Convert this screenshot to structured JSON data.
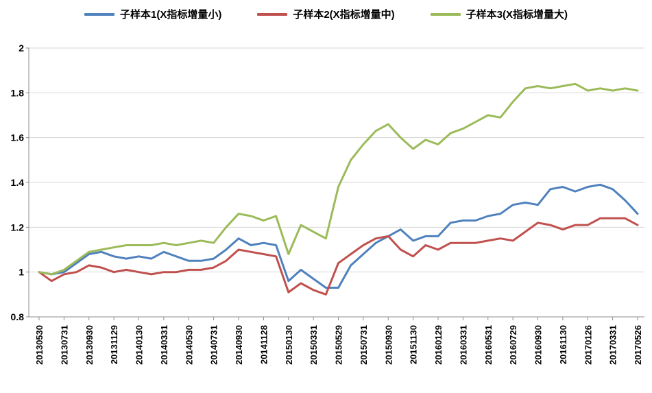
{
  "chart_data": {
    "type": "line",
    "title": "",
    "xlabel": "",
    "ylabel": "",
    "ylim": [
      0.8,
      2
    ],
    "yticks": [
      0.8,
      1,
      1.2,
      1.4,
      1.6,
      1.8,
      2
    ],
    "ytick_labels": [
      "0.8",
      "1",
      "1.2",
      "1.4",
      "1.6",
      "1.8",
      "2"
    ],
    "grid": true,
    "legend_position": "top",
    "points_per_label": 2,
    "x_tick_labels": [
      "20130530",
      "20130731",
      "20130930",
      "20131129",
      "20140130",
      "20140331",
      "20140530",
      "20140731",
      "20140930",
      "20141128",
      "20150130",
      "20150331",
      "20150529",
      "20150731",
      "20150930",
      "20151130",
      "20160129",
      "20160331",
      "20160531",
      "20160729",
      "20160930",
      "20161130",
      "20170126",
      "20170331",
      "20170526"
    ],
    "series": [
      {
        "name": "子样本1(X指标增量小)",
        "color": "#4F81BD",
        "values": [
          1.0,
          0.99,
          1.0,
          1.04,
          1.08,
          1.09,
          1.07,
          1.06,
          1.07,
          1.06,
          1.09,
          1.07,
          1.05,
          1.05,
          1.06,
          1.1,
          1.15,
          1.12,
          1.13,
          1.12,
          0.96,
          1.01,
          0.97,
          0.93,
          0.93,
          1.03,
          1.08,
          1.13,
          1.16,
          1.19,
          1.14,
          1.16,
          1.16,
          1.22,
          1.23,
          1.23,
          1.25,
          1.26,
          1.3,
          1.31,
          1.3,
          1.37,
          1.38,
          1.36,
          1.38,
          1.39,
          1.37,
          1.32,
          1.26
        ]
      },
      {
        "name": "子样本2(X指标增量中)",
        "color": "#C0504D",
        "values": [
          1.0,
          0.96,
          0.99,
          1.0,
          1.03,
          1.02,
          1.0,
          1.01,
          1.0,
          0.99,
          1.0,
          1.0,
          1.01,
          1.01,
          1.02,
          1.05,
          1.1,
          1.09,
          1.08,
          1.07,
          0.91,
          0.95,
          0.92,
          0.9,
          1.04,
          1.08,
          1.12,
          1.15,
          1.16,
          1.1,
          1.07,
          1.12,
          1.1,
          1.13,
          1.13,
          1.13,
          1.14,
          1.15,
          1.14,
          1.18,
          1.22,
          1.21,
          1.19,
          1.21,
          1.21,
          1.24,
          1.24,
          1.24,
          1.21
        ]
      },
      {
        "name": "子样本3(X指标增量大)",
        "color": "#9BBB59",
        "values": [
          1.0,
          0.99,
          1.01,
          1.05,
          1.09,
          1.1,
          1.11,
          1.12,
          1.12,
          1.12,
          1.13,
          1.12,
          1.13,
          1.14,
          1.13,
          1.2,
          1.26,
          1.25,
          1.23,
          1.25,
          1.08,
          1.21,
          1.18,
          1.15,
          1.38,
          1.5,
          1.57,
          1.63,
          1.66,
          1.6,
          1.55,
          1.59,
          1.57,
          1.62,
          1.64,
          1.67,
          1.7,
          1.69,
          1.76,
          1.82,
          1.83,
          1.82,
          1.83,
          1.84,
          1.81,
          1.82,
          1.81,
          1.82,
          1.81
        ]
      }
    ],
    "colors": {
      "grid": "#D6D6D6",
      "axis": "#8C8C8C",
      "text": "#000000",
      "background": "#FFFFFF"
    }
  }
}
